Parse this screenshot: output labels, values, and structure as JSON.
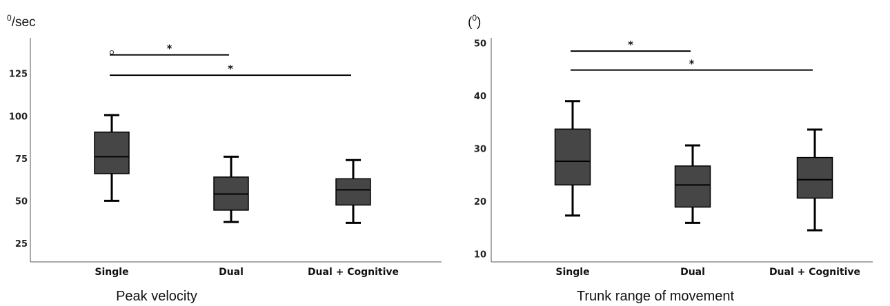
{
  "chart_data": [
    {
      "type": "box",
      "unit_label": {
        "sup": "0",
        "text": "/sec"
      },
      "caption": "Peak velocity",
      "categories": [
        "Single",
        "Dual",
        "Dual + Cognitive"
      ],
      "ylim": [
        14,
        146
      ],
      "yticks": [
        25,
        50,
        75,
        100,
        125
      ],
      "boxes": [
        {
          "min": 50,
          "q1": 66,
          "median": 76,
          "q3": 90.5,
          "max": 100.5
        },
        {
          "min": 37.5,
          "q1": 44.5,
          "median": 54,
          "q3": 64,
          "max": 76
        },
        {
          "min": 37,
          "q1": 47.5,
          "median": 56.5,
          "q3": 63,
          "max": 74
        }
      ],
      "outliers": [
        {
          "category": 0,
          "value": 137.5
        }
      ],
      "significance": [
        {
          "from": 0,
          "to": 1,
          "y": 136,
          "label": "*"
        },
        {
          "from": 0,
          "to": 2,
          "y": 124,
          "label": "*"
        }
      ],
      "style": {
        "box_color": "#464646",
        "line_color": "#000000"
      }
    },
    {
      "type": "box",
      "unit_label": {
        "pre": "(",
        "sup": "0",
        "post": ")"
      },
      "caption": "Trunk range of movement",
      "categories": [
        "Single",
        "Dual",
        "Dual + Cognitive"
      ],
      "ylim": [
        8.5,
        51
      ],
      "yticks": [
        10,
        20,
        30,
        40,
        50
      ],
      "boxes": [
        {
          "min": 17.3,
          "q1": 23.1,
          "median": 27.6,
          "q3": 33.7,
          "max": 39
        },
        {
          "min": 15.9,
          "q1": 18.9,
          "median": 23.1,
          "q3": 26.7,
          "max": 30.6
        },
        {
          "min": 14.5,
          "q1": 20.6,
          "median": 24.1,
          "q3": 28.3,
          "max": 33.6
        }
      ],
      "outliers": [],
      "significance": [
        {
          "from": 0,
          "to": 1,
          "y": 48.5,
          "label": "*"
        },
        {
          "from": 0,
          "to": 2,
          "y": 44.9,
          "label": "*"
        }
      ],
      "style": {
        "box_color": "#464646",
        "line_color": "#000000"
      }
    }
  ]
}
